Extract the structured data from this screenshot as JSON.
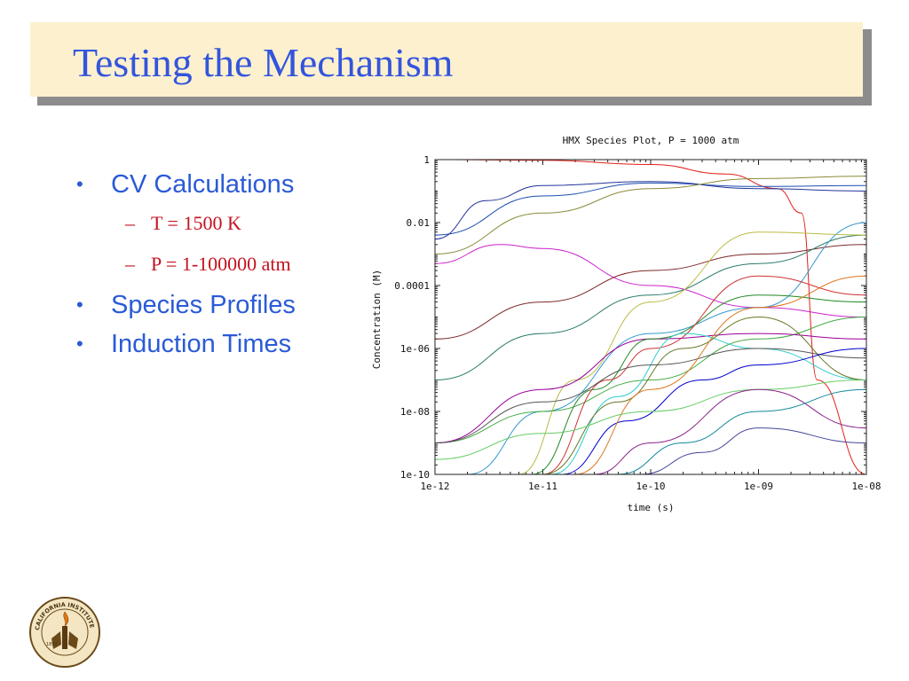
{
  "slide": {
    "title": "Testing the Mechanism",
    "bullets": [
      {
        "label": "CV Calculations",
        "subitems": [
          "T = 1500 K",
          "P = 1-100000 atm"
        ]
      },
      {
        "label": "Species Profiles",
        "subitems": []
      },
      {
        "label": "Induction Times",
        "subitems": []
      }
    ],
    "colors": {
      "title": "#3355dd",
      "bullet": "#2a5ad6",
      "subbullet": "#c4121f",
      "title_box": "#fdf0cf"
    }
  },
  "logo": {
    "year": "1891",
    "text": "CALIFORNIA INSTITUTE OF TECHNOLOGY"
  },
  "chart_data": {
    "type": "line",
    "title": "HMX Species Plot, P = 1000 atm",
    "xlabel": "time (s)",
    "ylabel": "Concentration (M)",
    "x_scale": "log",
    "y_scale": "log",
    "xlim": [
      1e-12,
      1e-08
    ],
    "ylim": [
      1e-10,
      1
    ],
    "x_ticks": [
      "1e-12",
      "1e-11",
      "1e-10",
      "1e-09",
      "1e-08"
    ],
    "y_ticks": [
      "1e-10",
      "1e-08",
      "1e-06",
      "0.0001",
      "0.01",
      "1"
    ],
    "series": [
      {
        "color": "#e0201a",
        "x": [
          1e-12,
          1e-11,
          1e-10,
          5e-10,
          1.5e-09,
          2.5e-09,
          3.5e-09,
          1e-08
        ],
        "y": [
          1,
          0.95,
          0.7,
          0.35,
          0.12,
          0.02,
          1e-07,
          1e-10
        ]
      },
      {
        "color": "#1a4fb0",
        "x": [
          1e-12,
          1e-11,
          1e-10,
          1e-09,
          1e-08
        ],
        "y": [
          0.004,
          0.07,
          0.18,
          0.14,
          0.15
        ]
      },
      {
        "color": "#223399",
        "x": [
          1e-12,
          3e-12,
          1e-11,
          1e-10,
          1e-09,
          1e-08
        ],
        "y": [
          0.003,
          0.05,
          0.15,
          0.2,
          0.12,
          0.1
        ]
      },
      {
        "color": "#8a8a3a",
        "x": [
          1e-12,
          1e-11,
          1e-10,
          1e-09,
          1e-08
        ],
        "y": [
          0.001,
          0.02,
          0.12,
          0.25,
          0.3
        ]
      },
      {
        "color": "#cc22cc",
        "x": [
          1e-12,
          4e-12,
          1e-11,
          1e-10,
          1e-09,
          1e-08
        ],
        "y": [
          0.0005,
          0.002,
          0.0015,
          0.0001,
          2e-05,
          1e-05
        ]
      },
      {
        "color": "#7e2a2a",
        "x": [
          1e-12,
          1e-11,
          1e-10,
          1e-09,
          1e-08
        ],
        "y": [
          2e-06,
          3e-05,
          0.0003,
          0.001,
          0.002
        ]
      },
      {
        "color": "#2a7a6a",
        "x": [
          1e-12,
          1e-11,
          1e-10,
          1e-09,
          1e-08
        ],
        "y": [
          1e-07,
          3e-06,
          5e-05,
          0.0005,
          0.004
        ]
      },
      {
        "color": "#3399cc",
        "x": [
          2e-12,
          1e-11,
          1e-10,
          1e-09,
          1e-08
        ],
        "y": [
          1e-10,
          1e-08,
          3e-06,
          2e-05,
          0.01
        ]
      },
      {
        "color": "#44aa44",
        "x": [
          1e-12,
          1e-11,
          1e-10,
          1e-09,
          1e-08
        ],
        "y": [
          1e-09,
          1e-08,
          1e-07,
          2e-06,
          1e-05
        ]
      },
      {
        "color": "#bbbb44",
        "x": [
          6e-12,
          2e-11,
          1e-10,
          1e-09,
          1e-08
        ],
        "y": [
          1e-10,
          1e-07,
          3e-05,
          0.005,
          0.004
        ]
      },
      {
        "color": "#990099",
        "x": [
          1e-12,
          1e-11,
          1e-10,
          1e-09,
          1e-08
        ],
        "y": [
          1e-09,
          5e-08,
          2e-06,
          3e-06,
          2e-06
        ]
      },
      {
        "color": "#228822",
        "x": [
          8e-12,
          3e-11,
          1e-10,
          1e-09,
          1e-08
        ],
        "y": [
          1e-10,
          5e-08,
          2e-06,
          5e-05,
          3e-05
        ]
      },
      {
        "color": "#cc3333",
        "x": [
          1e-11,
          4e-11,
          1e-10,
          1e-09,
          1e-08
        ],
        "y": [
          1e-10,
          1e-07,
          1e-06,
          0.0002,
          5e-05
        ]
      },
      {
        "color": "#33cccc",
        "x": [
          1.2e-11,
          5e-11,
          2e-10,
          1e-09,
          1e-08
        ],
        "y": [
          1e-10,
          3e-08,
          3e-06,
          1e-06,
          1e-07
        ]
      },
      {
        "color": "#667722",
        "x": [
          1e-11,
          5e-11,
          2e-10,
          1e-09,
          1e-08
        ],
        "y": [
          1e-10,
          2e-08,
          1e-06,
          1e-05,
          1e-07
        ]
      },
      {
        "color": "#555555",
        "x": [
          1e-12,
          1e-11,
          1e-10,
          1e-09,
          1e-08
        ],
        "y": [
          1e-09,
          2e-08,
          3e-07,
          1e-06,
          5e-07
        ]
      },
      {
        "color": "#0000cc",
        "x": [
          1.5e-11,
          6e-11,
          3e-10,
          1e-09,
          1e-08
        ],
        "y": [
          1e-10,
          5e-09,
          1e-07,
          3e-07,
          1e-06
        ]
      },
      {
        "color": "#dd7722",
        "x": [
          2e-11,
          1e-10,
          1e-09,
          1e-08
        ],
        "y": [
          1e-10,
          5e-08,
          2e-05,
          0.0002
        ]
      },
      {
        "color": "#66cc66",
        "x": [
          1e-12,
          1e-11,
          1e-10,
          1e-09,
          1e-08
        ],
        "y": [
          3e-10,
          2e-09,
          1e-08,
          5e-08,
          1e-07
        ]
      },
      {
        "color": "#882288",
        "x": [
          3e-11,
          1e-10,
          1e-09,
          1e-08
        ],
        "y": [
          1e-10,
          1e-09,
          5e-08,
          3e-09
        ]
      },
      {
        "color": "#118899",
        "x": [
          5e-11,
          2e-10,
          1e-09,
          1e-08
        ],
        "y": [
          1e-10,
          1e-09,
          1e-08,
          5e-08
        ]
      },
      {
        "color": "#444499",
        "x": [
          8e-11,
          3e-10,
          1e-09,
          1e-08
        ],
        "y": [
          1e-10,
          5e-10,
          3e-09,
          1e-09
        ]
      }
    ]
  }
}
